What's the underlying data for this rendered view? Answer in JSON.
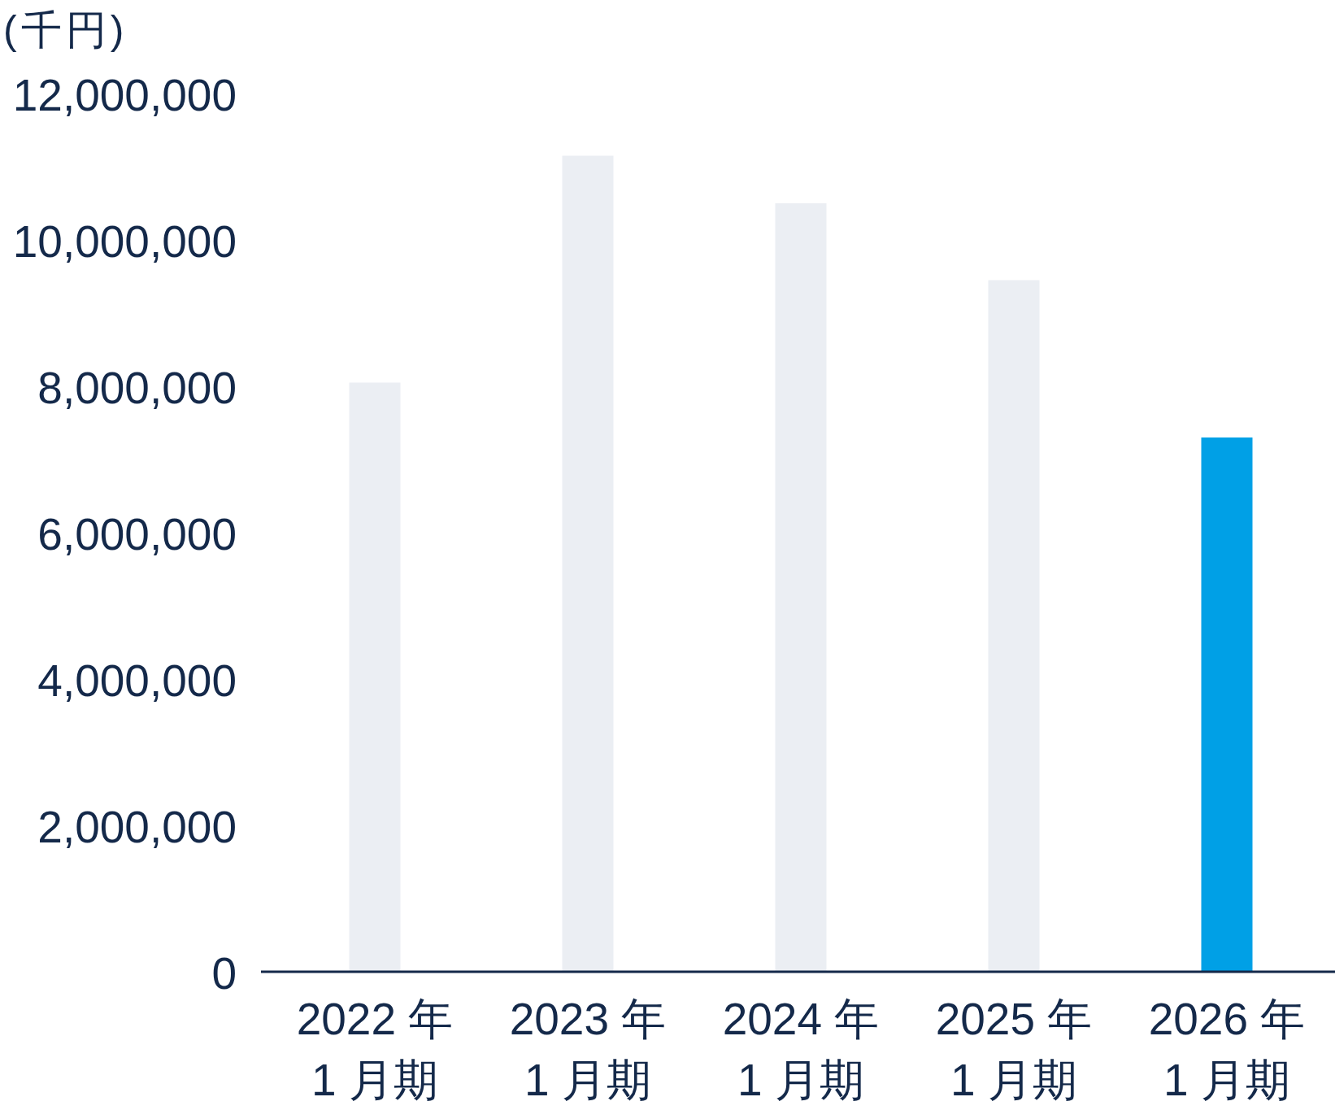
{
  "chart_data": {
    "type": "bar",
    "ylabel": "(千円)",
    "categories": [
      "2022 年\n1 月期",
      "2023 年\n1 月期",
      "2024 年\n1 月期",
      "2025 年\n1 月期",
      "2026 年\n1 月期"
    ],
    "values": [
      8050000,
      11150000,
      10500000,
      9450000,
      7300000
    ],
    "colors": [
      "#ebeef3",
      "#ebeef3",
      "#ebeef3",
      "#ebeef3",
      "#00a0e6"
    ],
    "ylim": [
      0,
      12000000
    ],
    "yticks": [
      0,
      {
        "value": 2000000,
        "label": "2,000,000"
      },
      {
        "value": 4000000,
        "label": "4,000,000"
      },
      {
        "value": 6000000,
        "label": "6,000,000"
      },
      {
        "value": 8000000,
        "label": "8,000,000"
      },
      {
        "value": 10000000,
        "label": "10,000,000"
      },
      {
        "value": 12000000,
        "label": "12,000,000"
      }
    ]
  }
}
